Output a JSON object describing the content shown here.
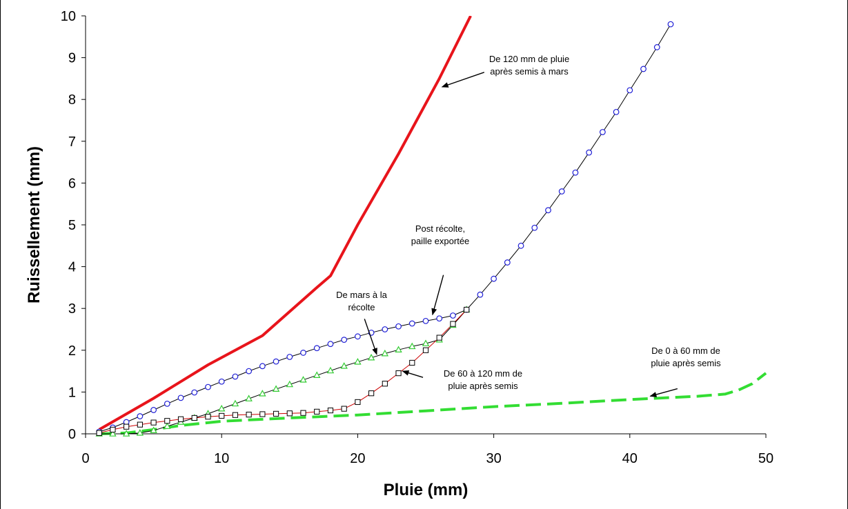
{
  "chart_data": {
    "type": "line",
    "xlabel": "Pluie (mm)",
    "ylabel": "Ruissellement (mm)",
    "xlim": [
      0,
      50
    ],
    "ylim": [
      0,
      10
    ],
    "xticks": [
      0,
      10,
      20,
      30,
      40,
      50
    ],
    "yticks": [
      0,
      1,
      2,
      3,
      4,
      5,
      6,
      7,
      8,
      9,
      10
    ],
    "grid": false,
    "legend": "none",
    "series": [
      {
        "color": "#e8141b",
        "style": "solid-thick",
        "marker": "none",
        "x": [
          1,
          5,
          9,
          13,
          17,
          18,
          20,
          23,
          26,
          28.3
        ],
        "y": [
          0.1,
          0.85,
          1.65,
          2.35,
          3.5,
          3.78,
          5.0,
          6.7,
          8.5,
          10.0
        ]
      },
      {
        "color": "#2e9e2e",
        "style": "dashed-thick",
        "stroke": "#33dd33",
        "marker": "none",
        "x": [
          1,
          3,
          5,
          7,
          10,
          15,
          20,
          25,
          30,
          35,
          40,
          45,
          47,
          48,
          49,
          50
        ],
        "y": [
          0.0,
          0.02,
          0.1,
          0.2,
          0.3,
          0.38,
          0.45,
          0.55,
          0.65,
          0.73,
          0.82,
          0.9,
          0.95,
          1.05,
          1.2,
          1.45
        ]
      },
      {
        "color": "#000000",
        "style": "solid-thin",
        "marker": "circle",
        "markerColor": "#1f1fd6",
        "x": [
          1,
          2,
          3,
          4,
          5,
          6,
          7,
          8,
          9,
          10,
          11,
          12,
          13,
          14,
          15,
          16,
          17,
          18,
          19,
          20,
          21,
          22,
          23,
          24,
          25,
          26,
          27,
          28,
          29,
          30,
          31,
          32,
          33,
          34,
          35,
          36,
          37,
          38,
          39,
          40,
          41,
          42,
          43
        ],
        "y": [
          0.05,
          0.15,
          0.28,
          0.42,
          0.57,
          0.72,
          0.86,
          0.99,
          1.12,
          1.25,
          1.37,
          1.5,
          1.62,
          1.73,
          1.84,
          1.94,
          2.05,
          2.15,
          2.25,
          2.33,
          2.42,
          2.5,
          2.57,
          2.64,
          2.7,
          2.76,
          2.83,
          2.97,
          3.33,
          3.71,
          4.1,
          4.5,
          4.93,
          5.35,
          5.8,
          6.25,
          6.73,
          7.22,
          7.7,
          8.22,
          8.73,
          9.25,
          9.8
        ]
      },
      {
        "color": "#000000",
        "style": "solid-thin",
        "marker": "triangle",
        "markerColor": "#33cc33",
        "x": [
          1,
          2,
          3,
          4,
          5,
          6,
          7,
          8,
          9,
          10,
          11,
          12,
          13,
          14,
          15,
          16,
          17,
          18,
          19,
          20,
          21,
          22,
          23,
          24,
          25,
          26,
          27,
          28
        ],
        "y": [
          0.0,
          0.0,
          0.0,
          0.02,
          0.08,
          0.18,
          0.28,
          0.38,
          0.48,
          0.6,
          0.72,
          0.84,
          0.96,
          1.07,
          1.18,
          1.29,
          1.4,
          1.51,
          1.62,
          1.72,
          1.82,
          1.92,
          2.01,
          2.09,
          2.16,
          2.25,
          2.6,
          2.97
        ]
      },
      {
        "color": "#cc0000",
        "style": "solid-thin",
        "marker": "square",
        "markerColor": "#000000",
        "x": [
          1,
          2,
          3,
          4,
          5,
          6,
          7,
          8,
          9,
          10,
          11,
          12,
          13,
          14,
          15,
          16,
          17,
          18,
          19,
          20,
          21,
          22,
          23,
          24,
          25,
          26,
          27,
          28
        ],
        "y": [
          0.02,
          0.1,
          0.17,
          0.22,
          0.27,
          0.31,
          0.35,
          0.38,
          0.41,
          0.43,
          0.45,
          0.46,
          0.47,
          0.48,
          0.49,
          0.5,
          0.53,
          0.56,
          0.6,
          0.76,
          0.97,
          1.2,
          1.45,
          1.7,
          2.0,
          2.3,
          2.63,
          2.97
        ]
      }
    ],
    "annotations": [
      {
        "lines": [
          "De 120 mm de pluie",
          "après semis à mars"
        ],
        "arrow_from": [
          29.3,
          8.65
        ],
        "arrow_to": [
          26.2,
          8.3
        ]
      },
      {
        "lines": [
          "Post récolte,",
          "paille exportée"
        ],
        "arrow_from": [
          26.3,
          3.8
        ],
        "arrow_to": [
          25.5,
          2.85
        ]
      },
      {
        "lines": [
          "De mars à la",
          "récolte"
        ],
        "arrow_from": [
          20.5,
          2.75
        ],
        "arrow_to": [
          21.4,
          1.9
        ]
      },
      {
        "lines": [
          "De 60 à 120 mm de",
          "pluie après semis"
        ],
        "arrow_from": [
          24.8,
          1.35
        ],
        "arrow_to": [
          23.3,
          1.5
        ]
      },
      {
        "lines": [
          "De 0 à 60 mm de",
          "pluie après semis"
        ],
        "arrow_from": [
          43.5,
          1.08
        ],
        "arrow_to": [
          41.5,
          0.9
        ]
      }
    ]
  }
}
